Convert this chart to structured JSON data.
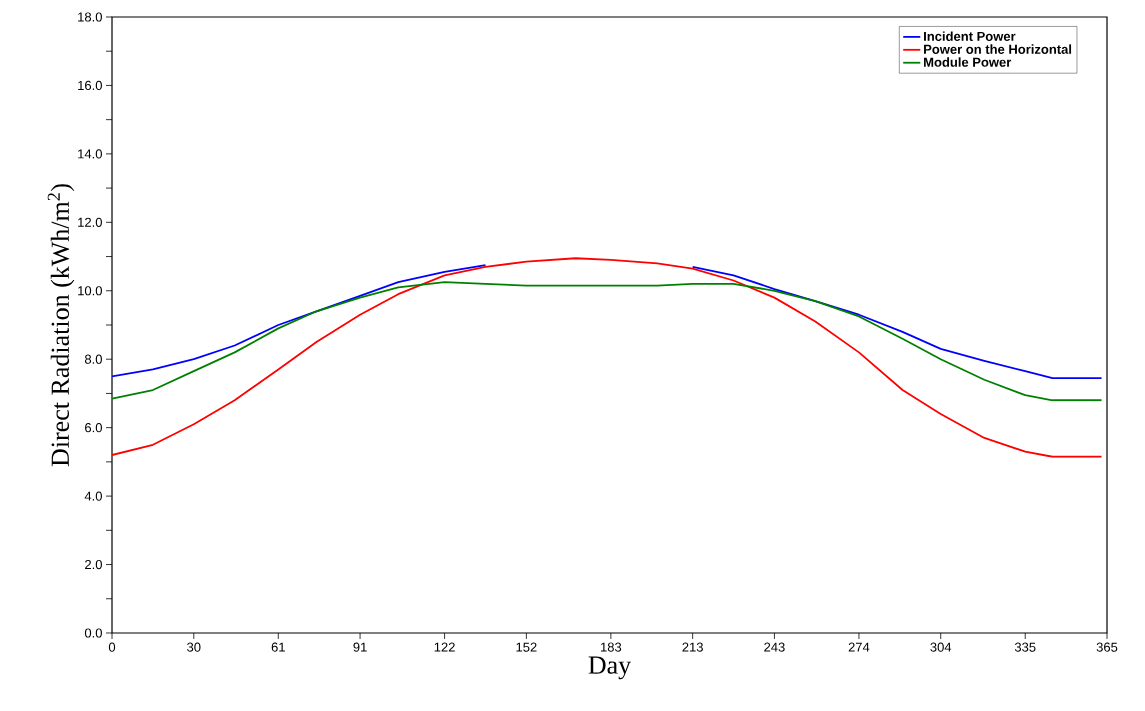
{
  "chart_data": {
    "type": "line",
    "xlabel": "Day",
    "ylabel": "Direct Radiation (kWh/m$^{2}$)",
    "xlim": [
      0,
      365
    ],
    "xticks": [
      0,
      30,
      61,
      91,
      122,
      152,
      183,
      213,
      243,
      274,
      304,
      335,
      365
    ],
    "ylim": [
      0,
      18
    ],
    "yticks": [
      {
        "value": 0,
        "label": "0.0"
      },
      {
        "value": 1,
        "label": null
      },
      {
        "value": 2,
        "label": "2.0"
      },
      {
        "value": 3,
        "label": null
      },
      {
        "value": 4,
        "label": "4.0"
      },
      {
        "value": 5,
        "label": null
      },
      {
        "value": 6,
        "label": "6.0"
      },
      {
        "value": 7,
        "label": null
      },
      {
        "value": 8,
        "label": "8.0"
      },
      {
        "value": 9,
        "label": null
      },
      {
        "value": 10,
        "label": "10.0"
      },
      {
        "value": 11,
        "label": null
      },
      {
        "value": 12,
        "label": "12.0"
      },
      {
        "value": 13,
        "label": null
      },
      {
        "value": 14,
        "label": "14.0"
      },
      {
        "value": 15,
        "label": null
      },
      {
        "value": 16,
        "label": "16.0"
      },
      {
        "value": 17,
        "label": null
      },
      {
        "value": 18,
        "label": "18.0"
      }
    ],
    "legend": "top right",
    "grid": false,
    "marker": "none",
    "line_style": "solid",
    "x": [
      0,
      15,
      30,
      45,
      61,
      75,
      91,
      105,
      122,
      137,
      152,
      170,
      183,
      200,
      213,
      228,
      243,
      258,
      274,
      290,
      304,
      320,
      335,
      345,
      363
    ],
    "series": [
      {
        "name": "Incident Power",
        "color": "#0000ff",
        "values": [
          7.5,
          7.7,
          8.0,
          8.4,
          9.0,
          9.4,
          9.85,
          10.25,
          10.55,
          10.75,
          null,
          null,
          null,
          null,
          10.7,
          10.45,
          10.05,
          9.7,
          9.3,
          8.8,
          8.3,
          7.95,
          7.65,
          7.45,
          7.45
        ]
      },
      {
        "name": "Power on the Horizontal",
        "color": "#ff0000",
        "values": [
          5.2,
          5.5,
          6.1,
          6.8,
          7.7,
          8.5,
          9.3,
          9.9,
          10.45,
          10.7,
          10.85,
          10.95,
          10.9,
          10.8,
          10.65,
          10.3,
          9.8,
          9.1,
          8.2,
          7.1,
          6.4,
          5.7,
          5.3,
          5.15,
          5.15
        ]
      },
      {
        "name": "Module Power",
        "color": "#008000",
        "values": [
          6.85,
          7.1,
          7.65,
          8.2,
          8.9,
          9.4,
          9.8,
          10.1,
          10.25,
          10.2,
          10.15,
          10.15,
          10.15,
          10.15,
          10.2,
          10.2,
          10.0,
          9.7,
          9.25,
          8.6,
          8.0,
          7.4,
          6.95,
          6.8,
          6.8
        ]
      }
    ]
  }
}
